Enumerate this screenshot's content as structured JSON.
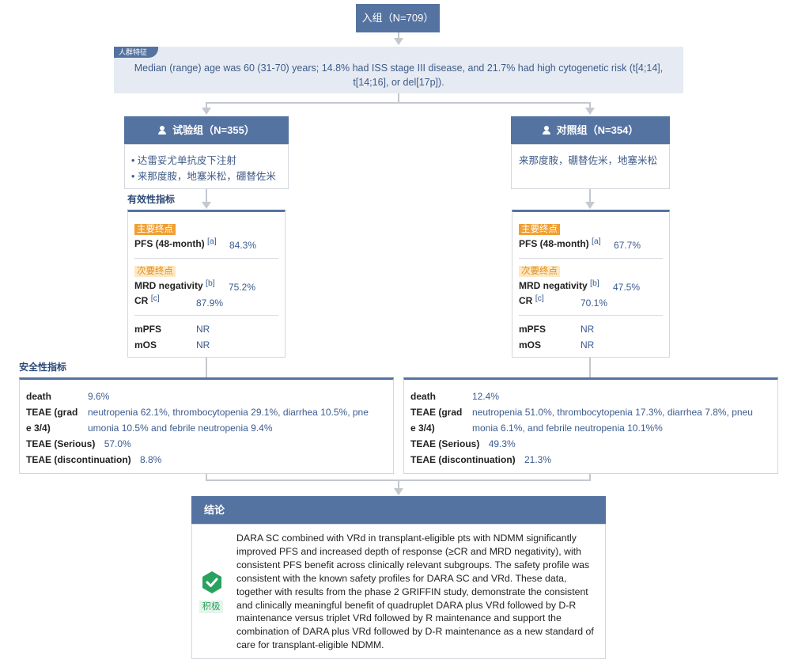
{
  "enroll": {
    "label": "入组（N=709）"
  },
  "population": {
    "tag": "人群特征",
    "text": "Median (range) age was 60 (31-70) years; 14.8% had ISS stage III disease, and 21.7% had high cytogenetic risk (t[4;14], t[14;16], or del[17p])."
  },
  "arms": {
    "experimental": {
      "title": "试验组（N=355）",
      "treatments": [
        "• 达雷妥尤单抗皮下注射",
        "• 来那度胺，地塞米松，硼替佐米"
      ]
    },
    "control": {
      "title": "对照组（N=354）",
      "treatments": [
        "来那度胺，硼替佐米，地塞米松"
      ]
    }
  },
  "efficacy_title": "有效性指标",
  "efficacy": {
    "primary_tag": "主要终点",
    "secondary_tag": "次要终点",
    "pfs_label": "PFS (48-month)",
    "pfs_note": "[a]",
    "mrd_label": "MRD negativity",
    "mrd_note": "[b]",
    "cr_label": "CR",
    "cr_note": "[c]",
    "mpfs_label": "mPFS",
    "mos_label": "mOS",
    "experimental": {
      "pfs": "84.3%",
      "mrd": "75.2%",
      "cr": "87.9%",
      "mpfs": "NR",
      "mos": "NR"
    },
    "control": {
      "pfs": "67.7%",
      "mrd": "47.5%",
      "cr": "70.1%",
      "mpfs": "NR",
      "mos": "NR"
    }
  },
  "safety_title": "安全性指标",
  "safety": {
    "death_label": "death",
    "teae34_label_line1": "TEAE (grad",
    "teae34_label_line2": "e 3/4)",
    "serious_label": "TEAE (Serious)",
    "disc_label": "TEAE (discontinuation)",
    "experimental": {
      "death": "9.6%",
      "teae34_line1": "neutropenia 62.1%, thrombocytopenia 29.1%, diarrhea 10.5%, pne",
      "teae34_line2": "umonia 10.5% and febrile neutropenia 9.4%",
      "serious": "57.0%",
      "disc": "8.8%"
    },
    "control": {
      "death": "12.4%",
      "teae34_line1": "neutropenia 51.0%, thrombocytopenia 17.3%, diarrhea 7.8%, pneu",
      "teae34_line2": "monia 6.1%, and febrile neutropenia 10.1%%",
      "serious": "49.3%",
      "disc": "21.3%"
    }
  },
  "conclusion": {
    "title": "结论",
    "badge": "积极",
    "text": "DARA SC combined with VRd in transplant-eligible pts with NDMM significantly improved PFS and increased depth of response (≥CR and MRD negativity), with consistent PFS benefit across clinically relevant subgroups. The safety profile was consistent with the known safety profiles for DARA SC and VRd. These data, together with results from the phase 2 GRIFFIN study, demonstrate the consistent and clinically meaningful benefit of quadruplet DARA plus VRd followed by D-R maintenance versus triplet VRd followed by R maintenance and support the combination of DARA plus VRd followed by D-R maintenance as a new standard of care for transplant-eligible NDMM."
  },
  "colors": {
    "header": "#5573a1",
    "panel": "#e6ebf3",
    "primary_tag": "#f0a032",
    "positive": "#27a35f"
  }
}
